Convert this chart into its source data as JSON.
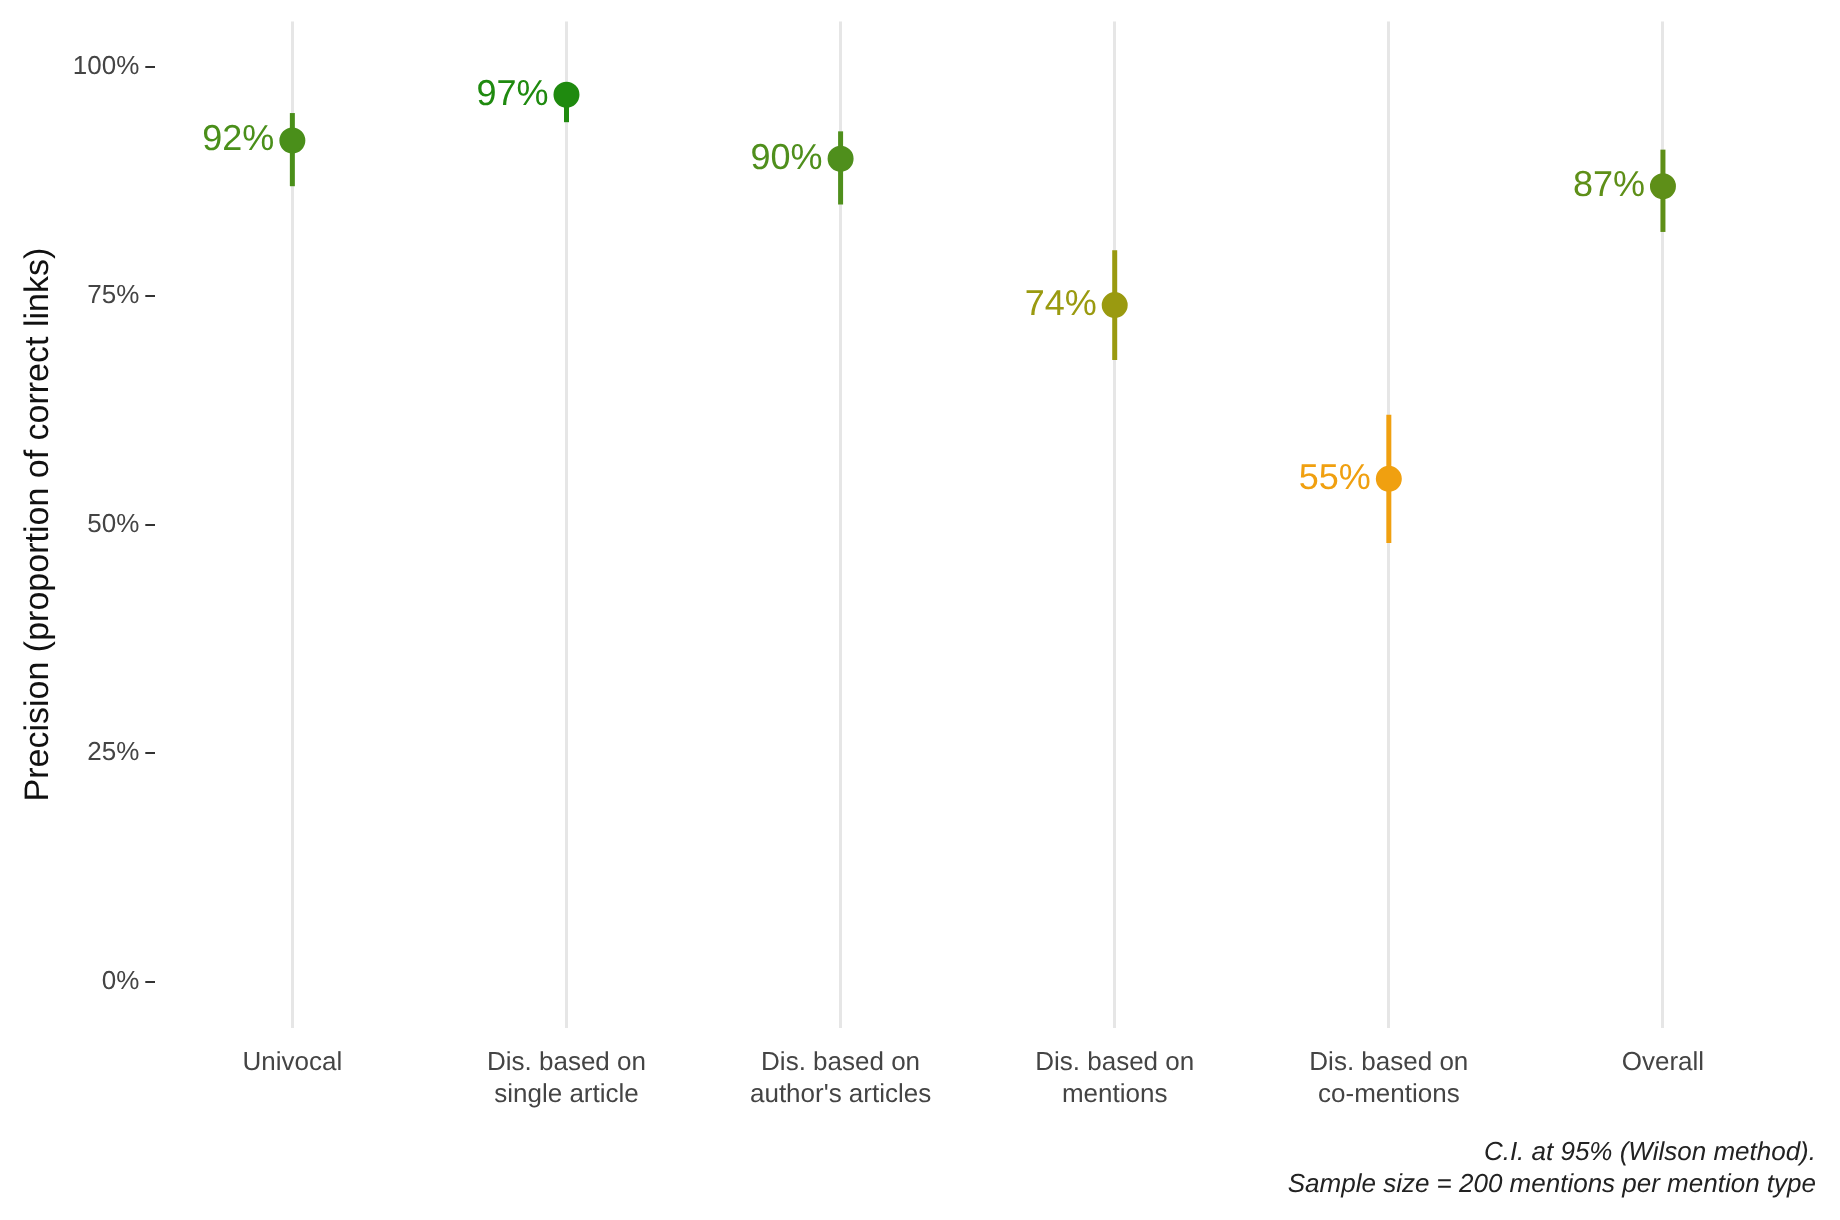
{
  "chart_data": {
    "type": "scatter",
    "ylabel": "Precision (proportion of correct links)",
    "categories": [
      "Univocal",
      "Dis. based on\nsingle article",
      "Dis. based on\nauthor's articles",
      "Dis. based on\nmentions",
      "Dis. based on\nco-mentions",
      "Overall"
    ],
    "values": [
      92,
      97,
      90,
      74,
      55,
      87
    ],
    "errors": [
      [
        87,
        95
      ],
      [
        94,
        98
      ],
      [
        85,
        93
      ],
      [
        68,
        80
      ],
      [
        48,
        62
      ],
      [
        82,
        91
      ]
    ],
    "colors": [
      "#4a8f1a",
      "#1f8a0f",
      "#4f8f1c",
      "#9a9a10",
      "#f0a010",
      "#5e8f18"
    ],
    "value_labels": [
      "92%",
      "97%",
      "90%",
      "74%",
      "55%",
      "87%"
    ],
    "ylim": [
      -5,
      105
    ],
    "yticks": [
      {
        "value": 0,
        "label": "0%"
      },
      {
        "value": 25,
        "label": "25%"
      },
      {
        "value": 50,
        "label": "50%"
      },
      {
        "value": 75,
        "label": "75%"
      },
      {
        "value": 100,
        "label": "100%"
      }
    ],
    "grid": "x",
    "legend": false,
    "marker": "circle",
    "annotations": [
      "C.I. at 95% (Wilson method).",
      "Sample size = 200 mentions per mention type"
    ]
  }
}
